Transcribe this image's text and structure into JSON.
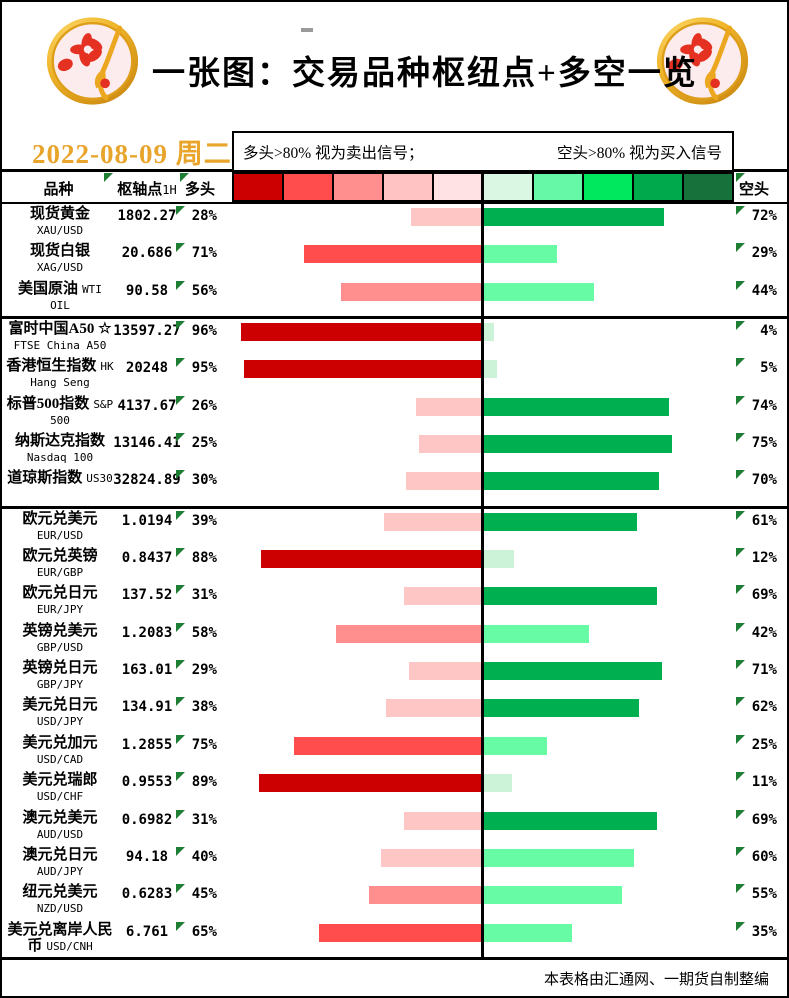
{
  "header": {
    "title": "一张图：交易品种枢纽点+多空一览",
    "date": "2022-08-09 周二",
    "date_color": "#e9a42c",
    "legend_long": "多头>80% 视为卖出信号；",
    "legend_short": "空头>80% 视为买入信号"
  },
  "columns": {
    "instrument": "品种",
    "pivot": "枢轴点",
    "pivot_suffix": "1H",
    "long": "多头",
    "short": "空头"
  },
  "icons": {
    "logo": "gold-coin-plum-blossom",
    "cell_marker": "green-corner-triangle"
  },
  "colors": {
    "marker_green": "#1e7e34",
    "scale": [
      "#cc0000",
      "#ff4d4d",
      "#ff8f8f",
      "#ffc3c3",
      "#ffe2e4",
      "#d9f7e2",
      "#66f7a7",
      "#00e85e",
      "#00a94c",
      "#17713a"
    ]
  },
  "rows": [
    {
      "name": "现货黄金",
      "code": "XAU/USD",
      "pivot": "1802.27",
      "long": 28,
      "short": 72,
      "long_color": "#ffc6c6",
      "short_color": "#00b050",
      "sec": false
    },
    {
      "name": "现货白银",
      "code": "XAG/USD",
      "pivot": "20.686",
      "long": 71,
      "short": 29,
      "long_color": "#ff4d4d",
      "short_color": "#66fba4",
      "sec": false
    },
    {
      "name": "美国原油",
      "code": "WTI OIL",
      "pivot": "90.58",
      "long": 56,
      "short": 44,
      "long_color": "#ff8f8f",
      "short_color": "#66fba4",
      "sec": false
    },
    {
      "name": "富时中国A50 ☆",
      "code": "FTSE China A50",
      "pivot": "13597.27",
      "long": 96,
      "short": 4,
      "long_color": "#cc0000",
      "short_color": "#ccf2d8",
      "sec": true
    },
    {
      "name": "香港恒生指数",
      "code": "HK Hang Seng",
      "pivot": "20248",
      "long": 95,
      "short": 5,
      "long_color": "#cc0000",
      "short_color": "#ccf2d8",
      "sec": false
    },
    {
      "name": "标普500指数",
      "code": "S&P 500",
      "pivot": "4137.67",
      "long": 26,
      "short": 74,
      "long_color": "#ffc6c6",
      "short_color": "#00b050",
      "sec": false
    },
    {
      "name": "纳斯达克指数",
      "code": "Nasdaq 100",
      "pivot": "13146.41",
      "long": 25,
      "short": 75,
      "long_color": "#ffc6c6",
      "short_color": "#00b050",
      "sec": false
    },
    {
      "name": "道琼斯指数",
      "code": "US30",
      "pivot": "32824.89",
      "long": 30,
      "short": 70,
      "long_color": "#ffc6c6",
      "short_color": "#00b050",
      "sec": false
    },
    {
      "name": "欧元兑美元",
      "code": "EUR/USD",
      "pivot": "1.0194",
      "long": 39,
      "short": 61,
      "long_color": "#ffc6c6",
      "short_color": "#00b050",
      "sec": true
    },
    {
      "name": "欧元兑英镑",
      "code": "EUR/GBP",
      "pivot": "0.8437",
      "long": 88,
      "short": 12,
      "long_color": "#cc0000",
      "short_color": "#ccf2d8",
      "sec": false
    },
    {
      "name": "欧元兑日元",
      "code": "EUR/JPY",
      "pivot": "137.52",
      "long": 31,
      "short": 69,
      "long_color": "#ffc6c6",
      "short_color": "#00b050",
      "sec": false
    },
    {
      "name": "英镑兑美元",
      "code": "GBP/USD",
      "pivot": "1.2083",
      "long": 58,
      "short": 42,
      "long_color": "#ff8f8f",
      "short_color": "#66fba4",
      "sec": false
    },
    {
      "name": "英镑兑日元",
      "code": "GBP/JPY",
      "pivot": "163.01",
      "long": 29,
      "short": 71,
      "long_color": "#ffc6c6",
      "short_color": "#00b050",
      "sec": false
    },
    {
      "name": "美元兑日元",
      "code": "USD/JPY",
      "pivot": "134.91",
      "long": 38,
      "short": 62,
      "long_color": "#ffc6c6",
      "short_color": "#00b050",
      "sec": false
    },
    {
      "name": "美元兑加元",
      "code": "USD/CAD",
      "pivot": "1.2855",
      "long": 75,
      "short": 25,
      "long_color": "#ff4d4d",
      "short_color": "#66fba4",
      "sec": false
    },
    {
      "name": "美元兑瑞郎",
      "code": "USD/CHF",
      "pivot": "0.9553",
      "long": 89,
      "short": 11,
      "long_color": "#cc0000",
      "short_color": "#ccf2d8",
      "sec": false
    },
    {
      "name": "澳元兑美元",
      "code": "AUD/USD",
      "pivot": "0.6982",
      "long": 31,
      "short": 69,
      "long_color": "#ffc6c6",
      "short_color": "#00b050",
      "sec": false
    },
    {
      "name": "澳元兑日元",
      "code": "AUD/JPY",
      "pivot": "94.18",
      "long": 40,
      "short": 60,
      "long_color": "#ffc6c6",
      "short_color": "#66fba4",
      "sec": false
    },
    {
      "name": "纽元兑美元",
      "code": "NZD/USD",
      "pivot": "0.6283",
      "long": 45,
      "short": 55,
      "long_color": "#ff8f8f",
      "short_color": "#66fba4",
      "sec": false
    },
    {
      "name": "美元兑离岸人民币",
      "code": "USD/CNH",
      "pivot": "6.761",
      "long": 65,
      "short": 35,
      "long_color": "#ff4d4d",
      "short_color": "#66fba4",
      "sec": false
    }
  ],
  "footer": "本表格由汇通网、一期货自制整编",
  "chart_data": {
    "type": "bar",
    "orientation": "diverging-horizontal",
    "title": "一张图：交易品种枢纽点+多空一览",
    "date": "2022-08-09 周二",
    "categories": [
      "XAU/USD",
      "XAG/USD",
      "WTI OIL",
      "FTSE China A50",
      "HK Hang Seng",
      "S&P 500",
      "Nasdaq 100",
      "US30",
      "EUR/USD",
      "EUR/GBP",
      "EUR/JPY",
      "GBP/USD",
      "GBP/JPY",
      "USD/JPY",
      "USD/CAD",
      "USD/CHF",
      "AUD/USD",
      "AUD/JPY",
      "NZD/USD",
      "USD/CNH"
    ],
    "pivot_1h": [
      1802.27,
      20.686,
      90.58,
      13597.27,
      20248,
      4137.67,
      13146.41,
      32824.89,
      1.0194,
      0.8437,
      137.52,
      1.2083,
      163.01,
      134.91,
      1.2855,
      0.9553,
      0.6982,
      94.18,
      0.6283,
      6.761
    ],
    "series": [
      {
        "name": "多头",
        "values": [
          28,
          71,
          56,
          96,
          95,
          26,
          25,
          30,
          39,
          88,
          31,
          58,
          29,
          38,
          75,
          89,
          31,
          40,
          45,
          65
        ]
      },
      {
        "name": "空头",
        "values": [
          72,
          29,
          44,
          4,
          5,
          74,
          75,
          70,
          61,
          12,
          69,
          42,
          71,
          62,
          25,
          11,
          69,
          60,
          55,
          35
        ]
      }
    ],
    "xlim": [
      0,
      100
    ],
    "legend_position": "top",
    "annotations": [
      "多头>80% 视为卖出信号；",
      "空头>80% 视为买入信号"
    ]
  }
}
